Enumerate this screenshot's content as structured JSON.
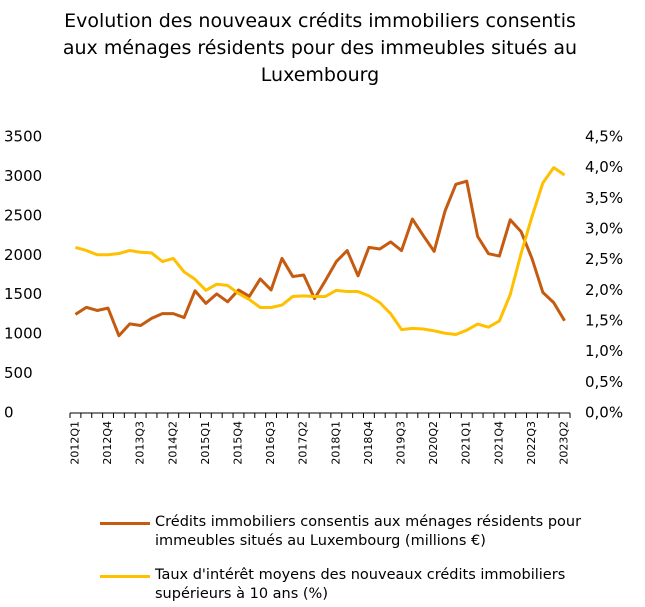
{
  "chart_data": {
    "type": "line",
    "title": "Evolution des nouveaux crédits immobiliers consentis aux ménages résidents pour des immeubles situés au Luxembourg",
    "categories": [
      "2012Q1",
      null,
      null,
      "2012Q4",
      null,
      null,
      "2013Q3",
      null,
      null,
      "2014Q2",
      null,
      null,
      "2015Q1",
      null,
      null,
      "2015Q4",
      null,
      null,
      "2016Q3",
      null,
      null,
      "2017Q2",
      null,
      null,
      "2018Q1",
      null,
      null,
      "2018Q4",
      null,
      null,
      "2019Q3",
      null,
      null,
      "2020Q2",
      null,
      null,
      "2021Q1",
      null,
      null,
      "2021Q4",
      null,
      null,
      "2022Q3",
      null,
      null,
      "2023Q2"
    ],
    "series": [
      {
        "name": "Crédits immobiliers consentis aux ménages résidents pour immeubles situés au Luxembourg (millions €)",
        "color": "#c55a11",
        "axis": "y",
        "values": [
          1250,
          1340,
          1300,
          1330,
          980,
          1130,
          1110,
          1200,
          1260,
          1260,
          1210,
          1550,
          1390,
          1510,
          1410,
          1560,
          1480,
          1700,
          1560,
          1960,
          1730,
          1750,
          1450,
          1680,
          1920,
          2060,
          1740,
          2100,
          2080,
          2170,
          2060,
          2460,
          2250,
          2050,
          2560,
          2900,
          2940,
          2240,
          2020,
          1990,
          2450,
          2300,
          1960,
          1530,
          1400,
          1170
        ]
      },
      {
        "name": "Taux d'intérêt moyens des nouveaux crédits immobiliers supérieurs à 10 ans (%)",
        "color": "#ffc000",
        "axis": "y2",
        "values": [
          2.7,
          2.65,
          2.58,
          2.58,
          2.6,
          2.65,
          2.62,
          2.61,
          2.47,
          2.52,
          2.3,
          2.18,
          2.0,
          2.1,
          2.08,
          1.95,
          1.85,
          1.72,
          1.72,
          1.76,
          1.9,
          1.91,
          1.9,
          1.9,
          2.0,
          1.98,
          1.98,
          1.91,
          1.8,
          1.62,
          1.36,
          1.38,
          1.37,
          1.34,
          1.3,
          1.28,
          1.35,
          1.45,
          1.4,
          1.5,
          1.93,
          2.6,
          3.2,
          3.75,
          4.0,
          3.88
        ]
      }
    ],
    "ylim": [
      0,
      3500
    ],
    "yticks": [
      0,
      500,
      1000,
      1500,
      2000,
      2500,
      3000,
      3500
    ],
    "y2lim": [
      0,
      4.5
    ],
    "y2ticks": [
      {
        "value": 0,
        "label": "0,0%"
      },
      {
        "value": 0.5,
        "label": "0,5%"
      },
      {
        "value": 1,
        "label": "1,0%"
      },
      {
        "value": 1.5,
        "label": "1,5%"
      },
      {
        "value": 2,
        "label": "2,0%"
      },
      {
        "value": 2.5,
        "label": "2,5%"
      },
      {
        "value": 3,
        "label": "3,0%"
      },
      {
        "value": 3.5,
        "label": "3,5%"
      },
      {
        "value": 4,
        "label": "4,0%"
      },
      {
        "value": 4.5,
        "label": "4,5%"
      }
    ],
    "grid": false
  }
}
